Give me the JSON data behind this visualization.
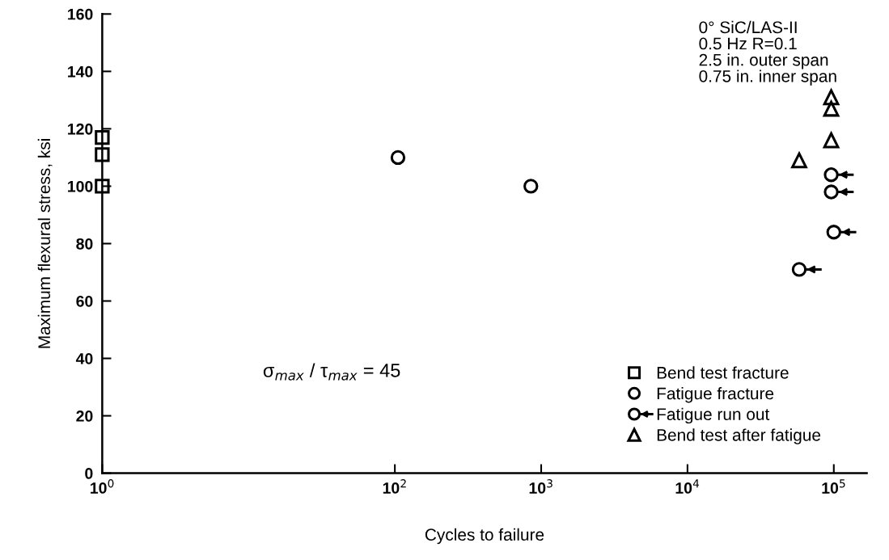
{
  "chart_data": {
    "type": "scatter",
    "xlabel": "Cycles to failure",
    "ylabel": "Maximum flexural stress, ksi",
    "log": "x",
    "xlim": [
      1,
      168000
    ],
    "ylim": [
      0,
      160
    ],
    "xticks": [
      {
        "value": 1,
        "label": "10$^{0}$"
      },
      {
        "value": 100,
        "label": "10$^{2}$"
      },
      {
        "value": 1000,
        "label": "10$^{3}$"
      },
      {
        "value": 10000,
        "label": "10$^{4}$"
      },
      {
        "value": 100000,
        "label": "10$^{5}$"
      }
    ],
    "yticks": [
      0,
      20,
      40,
      60,
      80,
      100,
      120,
      140,
      160
    ],
    "grid": false,
    "legend": "bottom right",
    "series": [
      {
        "name": "Bend test fracture",
        "color": "#000000",
        "marker": "square",
        "x": [
          1,
          1,
          1
        ],
        "values": [
          117,
          111,
          100
        ]
      },
      {
        "name": "Fatigue fracture",
        "color": "#000000",
        "marker": "circle",
        "x": [
          105,
          850
        ],
        "values": [
          110,
          100
        ]
      },
      {
        "name": "Fatigue run out",
        "color": "#000000",
        "marker": "circle-arrow",
        "x": [
          96000,
          96000,
          100000,
          58000
        ],
        "values": [
          104,
          98,
          84,
          71
        ]
      },
      {
        "name": "Bend test after fatigue",
        "color": "#000000",
        "marker": "triangle",
        "x": [
          58000,
          96000,
          96000,
          96000
        ],
        "values": [
          109,
          131,
          127,
          116
        ]
      }
    ],
    "annotations": [
      "0° SiC/LAS-II\n0.5 Hz R=0.1\n2.5 in. outer span\n0.75 in. inner span",
      "σ$_{max}$ / τ$_{max}$ = 45"
    ]
  }
}
